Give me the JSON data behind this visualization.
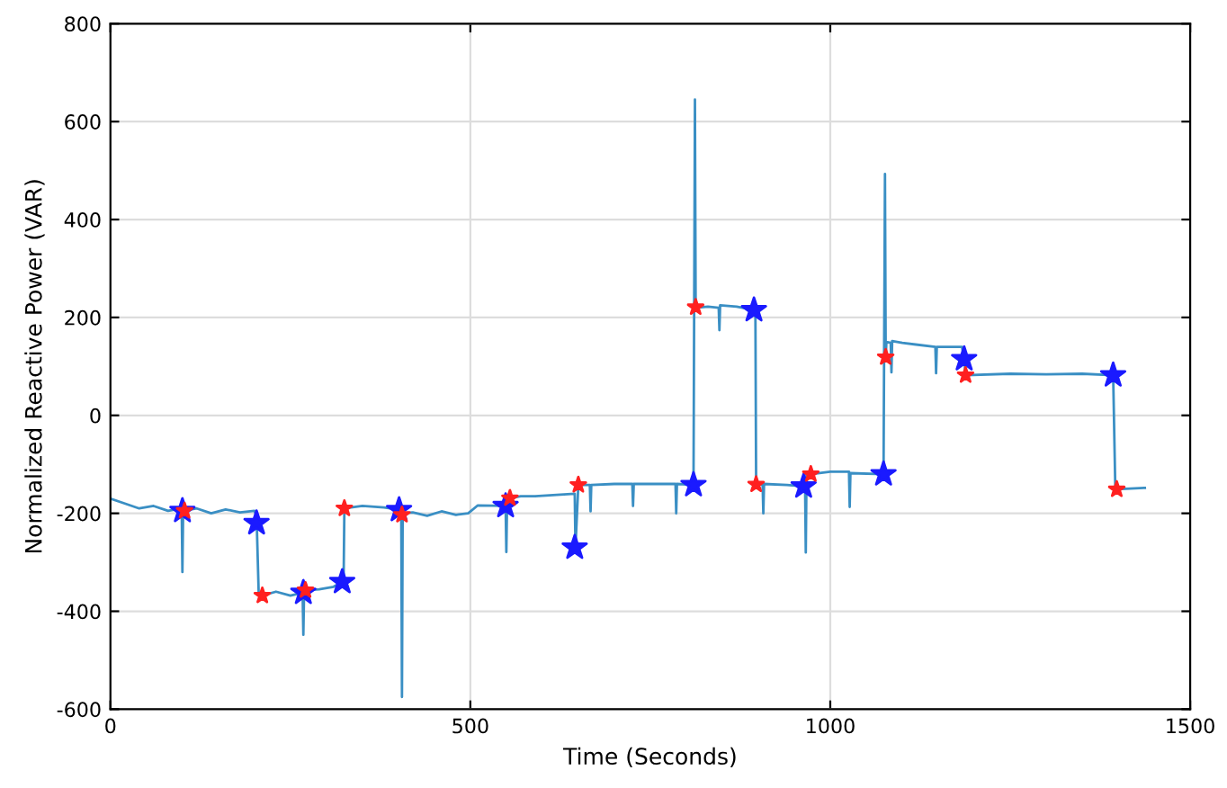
{
  "chart_data": {
    "type": "line",
    "xlabel": "Time (Seconds)",
    "ylabel": "Normalized Reactive Power (VAR)",
    "xlim": [
      0,
      1500
    ],
    "ylim": [
      -600,
      800
    ],
    "xticks": [
      0,
      500,
      1000,
      1500
    ],
    "yticks": [
      -600,
      -400,
      -200,
      0,
      200,
      400,
      600,
      800
    ],
    "grid": true,
    "series": [
      {
        "color": "#3a8fc4",
        "x": [
          0,
          20,
          40,
          60,
          80,
          99,
          100,
          101,
          120,
          140,
          160,
          180,
          200,
          203,
          206,
          211,
          230,
          250,
          267,
          268,
          269,
          271,
          290,
          310,
          322,
          324,
          325,
          350,
          380,
          404,
          405,
          406,
          420,
          440,
          460,
          480,
          497,
          510,
          549,
          550,
          551,
          555,
          570,
          590,
          645,
          646,
          650,
          666,
          667,
          668,
          700,
          725,
          726,
          727,
          785,
          786,
          787,
          810,
          812,
          813,
          814,
          830,
          845,
          846,
          847,
          870,
          894,
          896,
          897,
          906,
          907,
          908,
          940,
          963,
          965,
          966,
          967,
          973,
          1000,
          1026,
          1027,
          1028,
          1074,
          1076,
          1077,
          1078,
          1084,
          1085,
          1086,
          1100,
          1146,
          1147,
          1148,
          1183,
          1186,
          1188,
          1250,
          1300,
          1350,
          1393,
          1396,
          1398,
          1437
        ],
        "values": [
          -170,
          -180,
          -190,
          -185,
          -195,
          -190,
          -320,
          -195,
          -190,
          -200,
          -192,
          -198,
          -195,
          -205,
          -365,
          -368,
          -360,
          -368,
          -362,
          -448,
          -362,
          -357,
          -355,
          -350,
          -340,
          -330,
          -190,
          -185,
          -188,
          -193,
          -575,
          -200,
          -198,
          -205,
          -196,
          -203,
          -200,
          -184,
          -185,
          -279,
          -180,
          -169,
          -165,
          -165,
          -160,
          -270,
          -142,
          -142,
          -196,
          -142,
          -140,
          -140,
          -185,
          -140,
          -140,
          -200,
          -140,
          -142,
          645,
          221,
          220,
          222,
          220,
          174,
          225,
          222,
          215,
          210,
          -141,
          -141,
          -200,
          -140,
          -142,
          -145,
          -140,
          -280,
          -120,
          -120,
          -115,
          -115,
          -187,
          -118,
          -120,
          493,
          119,
          150,
          148,
          88,
          152,
          148,
          140,
          86,
          140,
          140,
          115,
          82,
          85,
          84,
          85,
          82,
          -151,
          -151,
          -148
        ]
      },
      {
        "type": "scatter",
        "color": "#1a1aff",
        "marker": "star",
        "x": [
          100,
          203,
          268,
          322,
          401,
          549,
          645,
          810,
          894,
          963,
          1074,
          1186,
          1393
        ],
        "values": [
          -195,
          -220,
          -362,
          -340,
          -193,
          -185,
          -270,
          -142,
          215,
          -145,
          -120,
          115,
          82
        ]
      },
      {
        "type": "scatter",
        "color": "#ff2020",
        "marker": "star",
        "x": [
          103,
          211,
          271,
          325,
          405,
          555,
          650,
          813,
          897,
          973,
          1077,
          1188,
          1398
        ],
        "values": [
          -195,
          -368,
          -357,
          -190,
          -203,
          -169,
          -142,
          221,
          -141,
          -120,
          119,
          82,
          -151
        ]
      }
    ]
  }
}
